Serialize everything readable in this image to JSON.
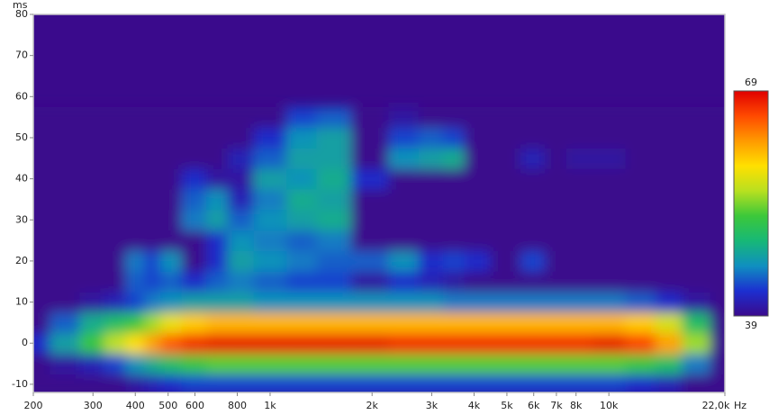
{
  "chart_data": {
    "type": "heatmap",
    "x_label": "Hz",
    "y_label": "ms",
    "xscale": "log",
    "xlim": [
      200,
      22000
    ],
    "ylim": [
      -12,
      80
    ],
    "xticks": [
      200,
      300,
      400,
      500,
      600,
      800,
      {
        "value": 1000,
        "label": "1k"
      },
      {
        "value": 2000,
        "label": "2k"
      },
      {
        "value": 3000,
        "label": "3k"
      },
      {
        "value": 4000,
        "label": "4k"
      },
      {
        "value": 5000,
        "label": "5k"
      },
      {
        "value": 6000,
        "label": "6k"
      },
      {
        "value": 7000,
        "label": "7k"
      },
      {
        "value": 8000,
        "label": "8k"
      },
      {
        "value": 10000,
        "label": "10k"
      },
      {
        "value": 22000,
        "label": "22,0k"
      }
    ],
    "yticks": [
      -10,
      0,
      10,
      20,
      30,
      40,
      50,
      60,
      70,
      80
    ],
    "zlim": [
      39,
      69
    ],
    "zticks": [
      39,
      69
    ],
    "colormap": [
      "#3a0a8c",
      "#1c2fd0",
      "#0f8fc0",
      "#17b877",
      "#3cc83a",
      "#b8e020",
      "#ffe000",
      "#ff9a00",
      "#ff4a00",
      "#e00000"
    ],
    "x": [
      200,
      250,
      300,
      350,
      400,
      450,
      500,
      600,
      700,
      800,
      1000,
      1250,
      1500,
      2000,
      2500,
      3000,
      3500,
      4000,
      5000,
      6000,
      7000,
      8000,
      10000,
      12500,
      15000,
      18000,
      22000
    ],
    "y": [
      -10,
      -5,
      0,
      5,
      10,
      15,
      20,
      25,
      30,
      35,
      40,
      45,
      50,
      55
    ],
    "values": [
      [
        39,
        39,
        39,
        39,
        40,
        41,
        42,
        43,
        43,
        43,
        43,
        43,
        43,
        43,
        43,
        43,
        43,
        43,
        43,
        43,
        43,
        43,
        43,
        42,
        41,
        39,
        39
      ],
      [
        39,
        40,
        41,
        43,
        46,
        48,
        50,
        52,
        53,
        53,
        53,
        53,
        53,
        53,
        53,
        53,
        53,
        53,
        53,
        53,
        53,
        53,
        53,
        52,
        50,
        45,
        39
      ],
      [
        42,
        47,
        52,
        56,
        59,
        62,
        65,
        67,
        68,
        68,
        68,
        68,
        68,
        68,
        67,
        67,
        67,
        67,
        67,
        67,
        67,
        67,
        68,
        66,
        62,
        55,
        39
      ],
      [
        39,
        44,
        48,
        50,
        52,
        55,
        58,
        60,
        61,
        61,
        61,
        61,
        61,
        61,
        61,
        61,
        61,
        61,
        61,
        61,
        61,
        61,
        61,
        60,
        57,
        50,
        39
      ],
      [
        39,
        39,
        40,
        41,
        43,
        45,
        46,
        47,
        47,
        47,
        46,
        46,
        46,
        46,
        46,
        46,
        45,
        45,
        45,
        45,
        45,
        45,
        45,
        44,
        42,
        40,
        39
      ],
      [
        39,
        39,
        39,
        39,
        44,
        43,
        44,
        42,
        44,
        45,
        44,
        43,
        43,
        40,
        42,
        41,
        40,
        39,
        39,
        39,
        39,
        39,
        39,
        39,
        39,
        39,
        39
      ],
      [
        39,
        39,
        39,
        39,
        45,
        43,
        46,
        39,
        42,
        47,
        46,
        45,
        44,
        44,
        46,
        42,
        43,
        42,
        39,
        43,
        39,
        39,
        39,
        39,
        39,
        39,
        39
      ],
      [
        39,
        39,
        39,
        39,
        39,
        39,
        39,
        39,
        42,
        46,
        45,
        44,
        45,
        39,
        39,
        39,
        39,
        39,
        39,
        39,
        39,
        39,
        39,
        39,
        39,
        39,
        39
      ],
      [
        39,
        39,
        39,
        39,
        39,
        39,
        39,
        45,
        47,
        44,
        46,
        47,
        48,
        39,
        39,
        39,
        39,
        39,
        39,
        39,
        39,
        39,
        39,
        39,
        39,
        39,
        39
      ],
      [
        39,
        39,
        39,
        39,
        39,
        39,
        39,
        44,
        46,
        41,
        45,
        48,
        47,
        39,
        39,
        39,
        39,
        39,
        39,
        39,
        39,
        39,
        39,
        39,
        39,
        39,
        39
      ],
      [
        39,
        39,
        39,
        39,
        39,
        39,
        39,
        42,
        40,
        40,
        47,
        46,
        48,
        42,
        39,
        39,
        39,
        39,
        39,
        39,
        39,
        39,
        39,
        39,
        39,
        39,
        39
      ],
      [
        39,
        39,
        39,
        39,
        39,
        39,
        39,
        39,
        39,
        41,
        44,
        47,
        47,
        39,
        46,
        47,
        48,
        39,
        39,
        41,
        39,
        40,
        40,
        39,
        39,
        39,
        39
      ],
      [
        39,
        39,
        39,
        39,
        39,
        39,
        39,
        39,
        39,
        39,
        42,
        46,
        47,
        39,
        43,
        44,
        43,
        39,
        39,
        39,
        39,
        39,
        39,
        39,
        39,
        39,
        39
      ],
      [
        39,
        39,
        39,
        39,
        39,
        39,
        39,
        39,
        39,
        39,
        39,
        43,
        44,
        39,
        40,
        39,
        39,
        39,
        39,
        39,
        39,
        39,
        39,
        39,
        39,
        39,
        39
      ]
    ]
  }
}
